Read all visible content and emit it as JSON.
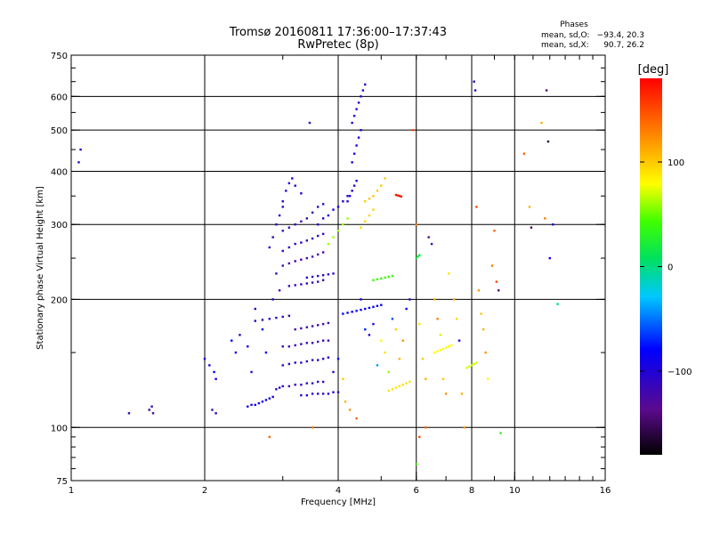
{
  "chart_data": {
    "type": "scatter",
    "title": "Tromsø 20160811 17:36:00–17:37:43",
    "subtitle": "RwPretec (8p)",
    "xlabel": "Frequency [MHz]",
    "ylabel": "Stationary phase Virtual Height [km]",
    "x_scale": "log",
    "y_scale": "log",
    "xlim": [
      1,
      16
    ],
    "ylim": [
      75,
      750
    ],
    "x_ticks": [
      1,
      2,
      4,
      6,
      8,
      10,
      16
    ],
    "x_tick_labels": [
      "1",
      "2",
      "4",
      "6",
      "8",
      "10",
      "16"
    ],
    "x_gridlines": [
      2,
      4,
      6,
      8,
      10
    ],
    "y_ticks": [
      75,
      100,
      200,
      300,
      400,
      500,
      600,
      750
    ],
    "y_tick_labels": [
      "75",
      "100",
      "200",
      "300",
      "400",
      "500",
      "600",
      "750"
    ],
    "y_gridlines": [
      100,
      200,
      300,
      400,
      500,
      600
    ],
    "grid": true,
    "phases": {
      "title": "Phases",
      "o_label": "mean, sd,O:",
      "o_values": "−93.4, 20.3",
      "x_label": "mean, sd,X:",
      "x_values": "90.7, 26.2"
    },
    "colorbar": {
      "label": "[deg]",
      "range": [
        -180,
        180
      ],
      "tick_values": [
        100,
        0,
        -100
      ],
      "tick_labels": [
        "100",
        "0",
        "−100"
      ]
    },
    "traces": [
      {
        "x": [
          2.5,
          2.55,
          2.6,
          2.65,
          2.7,
          2.75,
          2.8,
          2.85
        ],
        "y": [
          112,
          113,
          113,
          114,
          115,
          116,
          117,
          118
        ],
        "phase": -90
      },
      {
        "x": [
          2.9,
          2.95,
          3.0,
          3.1,
          3.2,
          3.3,
          3.4,
          3.5,
          3.6,
          3.7
        ],
        "y": [
          123,
          124,
          125,
          125,
          126,
          126,
          127,
          127,
          128,
          128
        ],
        "phase": -110
      },
      {
        "x": [
          3.3,
          3.4,
          3.5,
          3.6,
          3.7,
          3.8,
          3.9,
          4.0
        ],
        "y": [
          119,
          119,
          120,
          120,
          120,
          120,
          121,
          121
        ],
        "phase": -105
      },
      {
        "x": [
          4.3,
          4.35,
          4.4,
          4.45,
          4.5,
          4.55,
          4.6
        ],
        "y": [
          520,
          540,
          560,
          580,
          600,
          620,
          640
        ],
        "phase": -100
      },
      {
        "x": [
          4.3,
          4.35,
          4.4,
          4.45,
          4.5
        ],
        "y": [
          420,
          440,
          460,
          480,
          500
        ],
        "phase": -95
      },
      {
        "x": [
          4.2,
          4.25,
          4.3,
          4.35,
          4.4
        ],
        "y": [
          340,
          350,
          360,
          370,
          380
        ],
        "phase": -100
      },
      {
        "x": [
          3.6,
          3.7,
          3.8,
          3.9,
          4.0,
          4.1,
          4.2
        ],
        "y": [
          300,
          310,
          315,
          325,
          330,
          340,
          350
        ],
        "phase": -95
      },
      {
        "x": [
          3.0,
          3.1,
          3.2,
          3.3,
          3.4,
          3.5,
          3.6,
          3.7
        ],
        "y": [
          290,
          295,
          300,
          305,
          310,
          320,
          330,
          335
        ],
        "phase": -115
      },
      {
        "x": [
          3.0,
          3.1,
          3.2,
          3.3,
          3.4,
          3.5,
          3.6,
          3.7
        ],
        "y": [
          260,
          265,
          270,
          272,
          275,
          278,
          282,
          285
        ],
        "phase": -110
      },
      {
        "x": [
          3.0,
          3.1,
          3.2,
          3.3,
          3.4,
          3.5,
          3.6,
          3.7
        ],
        "y": [
          240,
          243,
          246,
          248,
          250,
          252,
          255,
          258
        ],
        "phase": -120
      },
      {
        "x": [
          3.1,
          3.2,
          3.3,
          3.4,
          3.5,
          3.6,
          3.7
        ],
        "y": [
          215,
          216,
          217,
          218,
          219,
          220,
          222
        ],
        "phase": -115
      },
      {
        "x": [
          3.4,
          3.5,
          3.6,
          3.7,
          3.8,
          3.9
        ],
        "y": [
          225,
          226,
          227,
          228,
          229,
          230
        ],
        "phase": -110
      },
      {
        "x": [
          3.0,
          3.05,
          3.1,
          3.15,
          3.2,
          3.3
        ],
        "y": [
          340,
          360,
          375,
          385,
          370,
          355
        ],
        "phase": -100
      },
      {
        "x": [
          2.8,
          2.85,
          2.9,
          2.95,
          3.0
        ],
        "y": [
          265,
          280,
          300,
          315,
          330
        ],
        "phase": -105
      },
      {
        "x": [
          4.8,
          4.9,
          5.0,
          5.1,
          5.2,
          5.3
        ],
        "y": [
          222,
          223,
          224,
          225,
          226,
          227
        ],
        "phase": 40
      },
      {
        "x": [
          4.6,
          4.7,
          4.8,
          4.9,
          5.0,
          5.1
        ],
        "y": [
          340,
          345,
          350,
          360,
          370,
          385
        ],
        "phase": 100
      },
      {
        "x": [
          4.5,
          4.6,
          4.7,
          4.8
        ],
        "y": [
          295,
          305,
          315,
          325
        ],
        "phase": 95
      },
      {
        "x": [
          3.8,
          3.9,
          4.0,
          4.1,
          4.2
        ],
        "y": [
          270,
          280,
          290,
          300,
          310
        ],
        "phase": 60
      },
      {
        "x": [
          5.4,
          5.45,
          5.5,
          5.55
        ],
        "y": [
          352,
          351,
          350,
          349
        ],
        "phase": 170
      },
      {
        "x": [
          6.0,
          6.05,
          6.1
        ],
        "y": [
          250,
          252,
          254
        ],
        "phase": 20
      },
      {
        "x": [
          4.1,
          4.2,
          4.3,
          4.4,
          4.5,
          4.6,
          4.7,
          4.8,
          4.9,
          5.0
        ],
        "y": [
          185,
          186,
          187,
          188,
          189,
          190,
          191,
          192,
          193,
          194
        ],
        "phase": -80
      },
      {
        "x": [
          2.6,
          2.7,
          2.8,
          2.9,
          3.0,
          3.1
        ],
        "y": [
          178,
          179,
          180,
          181,
          182,
          183
        ],
        "phase": -110
      },
      {
        "x": [
          3.2,
          3.3,
          3.4,
          3.5,
          3.6,
          3.7,
          3.8
        ],
        "y": [
          170,
          171,
          172,
          173,
          174,
          175,
          176
        ],
        "phase": -120
      },
      {
        "x": [
          3.0,
          3.1,
          3.2,
          3.3,
          3.4,
          3.5,
          3.6,
          3.7,
          3.8
        ],
        "y": [
          155,
          155,
          156,
          157,
          158,
          158,
          159,
          160,
          160
        ],
        "phase": -115
      },
      {
        "x": [
          3.0,
          3.1,
          3.2,
          3.3,
          3.4,
          3.5,
          3.6,
          3.7,
          3.8
        ],
        "y": [
          140,
          141,
          142,
          142,
          143,
          144,
          144,
          145,
          146
        ],
        "phase": -105
      },
      {
        "x": [
          5.2,
          5.3,
          5.4,
          5.5,
          5.6,
          5.7,
          5.8
        ],
        "y": [
          122,
          123,
          124,
          125,
          126,
          127,
          128
        ],
        "phase": 90
      },
      {
        "x": [
          6.6,
          6.7,
          6.8,
          6.9,
          7.0,
          7.1,
          7.2
        ],
        "y": [
          150,
          151,
          152,
          153,
          154,
          155,
          156
        ],
        "phase": 80
      },
      {
        "x": [
          7.8,
          7.9,
          8.0,
          8.1,
          8.2
        ],
        "y": [
          138,
          139,
          140,
          141,
          142
        ],
        "phase": 70
      }
    ],
    "scattered": [
      {
        "x": 1.05,
        "y": 450,
        "phase": -100
      },
      {
        "x": 1.04,
        "y": 420,
        "phase": -110
      },
      {
        "x": 1.35,
        "y": 108,
        "phase": -110
      },
      {
        "x": 1.5,
        "y": 110,
        "phase": -120
      },
      {
        "x": 1.52,
        "y": 112,
        "phase": -115
      },
      {
        "x": 1.53,
        "y": 108,
        "phase": -120
      },
      {
        "x": 2.0,
        "y": 145,
        "phase": -100
      },
      {
        "x": 2.05,
        "y": 140,
        "phase": -90
      },
      {
        "x": 2.1,
        "y": 135,
        "phase": -85
      },
      {
        "x": 2.12,
        "y": 130,
        "phase": -90
      },
      {
        "x": 2.08,
        "y": 110,
        "phase": -120
      },
      {
        "x": 2.12,
        "y": 108,
        "phase": -110
      },
      {
        "x": 2.3,
        "y": 160,
        "phase": -80
      },
      {
        "x": 2.35,
        "y": 150,
        "phase": -90
      },
      {
        "x": 2.4,
        "y": 165,
        "phase": -100
      },
      {
        "x": 2.5,
        "y": 155,
        "phase": -95
      },
      {
        "x": 2.55,
        "y": 135,
        "phase": -110
      },
      {
        "x": 2.6,
        "y": 190,
        "phase": -100
      },
      {
        "x": 2.7,
        "y": 170,
        "phase": -85
      },
      {
        "x": 2.75,
        "y": 150,
        "phase": -80
      },
      {
        "x": 2.8,
        "y": 95,
        "phase": 140
      },
      {
        "x": 2.85,
        "y": 200,
        "phase": -100
      },
      {
        "x": 2.9,
        "y": 230,
        "phase": -110
      },
      {
        "x": 2.95,
        "y": 210,
        "phase": -120
      },
      {
        "x": 3.45,
        "y": 520,
        "phase": -110
      },
      {
        "x": 3.5,
        "y": 100,
        "phase": 130
      },
      {
        "x": 3.9,
        "y": 135,
        "phase": -100
      },
      {
        "x": 4.0,
        "y": 145,
        "phase": -80
      },
      {
        "x": 4.1,
        "y": 130,
        "phase": 100
      },
      {
        "x": 4.15,
        "y": 115,
        "phase": 110
      },
      {
        "x": 4.25,
        "y": 110,
        "phase": 120
      },
      {
        "x": 4.4,
        "y": 105,
        "phase": 140
      },
      {
        "x": 4.5,
        "y": 200,
        "phase": -90
      },
      {
        "x": 4.6,
        "y": 170,
        "phase": -70
      },
      {
        "x": 4.7,
        "y": 165,
        "phase": -90
      },
      {
        "x": 4.8,
        "y": 175,
        "phase": -100
      },
      {
        "x": 4.9,
        "y": 140,
        "phase": -40
      },
      {
        "x": 5.0,
        "y": 160,
        "phase": 80
      },
      {
        "x": 5.1,
        "y": 150,
        "phase": 90
      },
      {
        "x": 5.2,
        "y": 135,
        "phase": 60
      },
      {
        "x": 5.3,
        "y": 180,
        "phase": -60
      },
      {
        "x": 5.4,
        "y": 170,
        "phase": 100
      },
      {
        "x": 5.5,
        "y": 145,
        "phase": 110
      },
      {
        "x": 5.6,
        "y": 160,
        "phase": 120
      },
      {
        "x": 5.7,
        "y": 190,
        "phase": -80
      },
      {
        "x": 5.8,
        "y": 200,
        "phase": -100
      },
      {
        "x": 5.9,
        "y": 500,
        "phase": 150
      },
      {
        "x": 6.0,
        "y": 300,
        "phase": 130
      },
      {
        "x": 6.1,
        "y": 175,
        "phase": 90
      },
      {
        "x": 6.2,
        "y": 145,
        "phase": 100
      },
      {
        "x": 6.3,
        "y": 130,
        "phase": 110
      },
      {
        "x": 6.4,
        "y": 280,
        "phase": -130
      },
      {
        "x": 6.5,
        "y": 270,
        "phase": -120
      },
      {
        "x": 6.6,
        "y": 200,
        "phase": 110
      },
      {
        "x": 6.7,
        "y": 180,
        "phase": 130
      },
      {
        "x": 6.8,
        "y": 165,
        "phase": 70
      },
      {
        "x": 6.9,
        "y": 130,
        "phase": 100
      },
      {
        "x": 7.0,
        "y": 120,
        "phase": 120
      },
      {
        "x": 7.1,
        "y": 230,
        "phase": 90
      },
      {
        "x": 7.3,
        "y": 200,
        "phase": 110
      },
      {
        "x": 7.4,
        "y": 180,
        "phase": 95
      },
      {
        "x": 7.5,
        "y": 160,
        "phase": -90
      },
      {
        "x": 7.6,
        "y": 120,
        "phase": 110
      },
      {
        "x": 7.7,
        "y": 100,
        "phase": 120
      },
      {
        "x": 6.0,
        "y": 82,
        "phase": 40
      },
      {
        "x": 6.1,
        "y": 95,
        "phase": 150
      },
      {
        "x": 6.3,
        "y": 100,
        "phase": 140
      },
      {
        "x": 8.1,
        "y": 650,
        "phase": -110
      },
      {
        "x": 8.15,
        "y": 620,
        "phase": -100
      },
      {
        "x": 8.2,
        "y": 330,
        "phase": 150
      },
      {
        "x": 8.3,
        "y": 210,
        "phase": 120
      },
      {
        "x": 8.4,
        "y": 185,
        "phase": 100
      },
      {
        "x": 8.5,
        "y": 170,
        "phase": 110
      },
      {
        "x": 8.6,
        "y": 150,
        "phase": 120
      },
      {
        "x": 8.7,
        "y": 130,
        "phase": 80
      },
      {
        "x": 9.0,
        "y": 290,
        "phase": 140
      },
      {
        "x": 9.1,
        "y": 220,
        "phase": 150
      },
      {
        "x": 9.2,
        "y": 210,
        "phase": -140
      },
      {
        "x": 9.3,
        "y": 97,
        "phase": 30
      },
      {
        "x": 8.9,
        "y": 240,
        "phase": 130
      },
      {
        "x": 10.5,
        "y": 440,
        "phase": 140
      },
      {
        "x": 10.8,
        "y": 330,
        "phase": 110
      },
      {
        "x": 10.9,
        "y": 295,
        "phase": -150
      },
      {
        "x": 11.8,
        "y": 620,
        "phase": -140
      },
      {
        "x": 11.9,
        "y": 470,
        "phase": -160
      },
      {
        "x": 12.0,
        "y": 250,
        "phase": -90
      },
      {
        "x": 12.2,
        "y": 300,
        "phase": -100
      },
      {
        "x": 12.5,
        "y": 195,
        "phase": -10
      },
      {
        "x": 11.5,
        "y": 520,
        "phase": 110
      },
      {
        "x": 11.7,
        "y": 310,
        "phase": 130
      }
    ]
  }
}
